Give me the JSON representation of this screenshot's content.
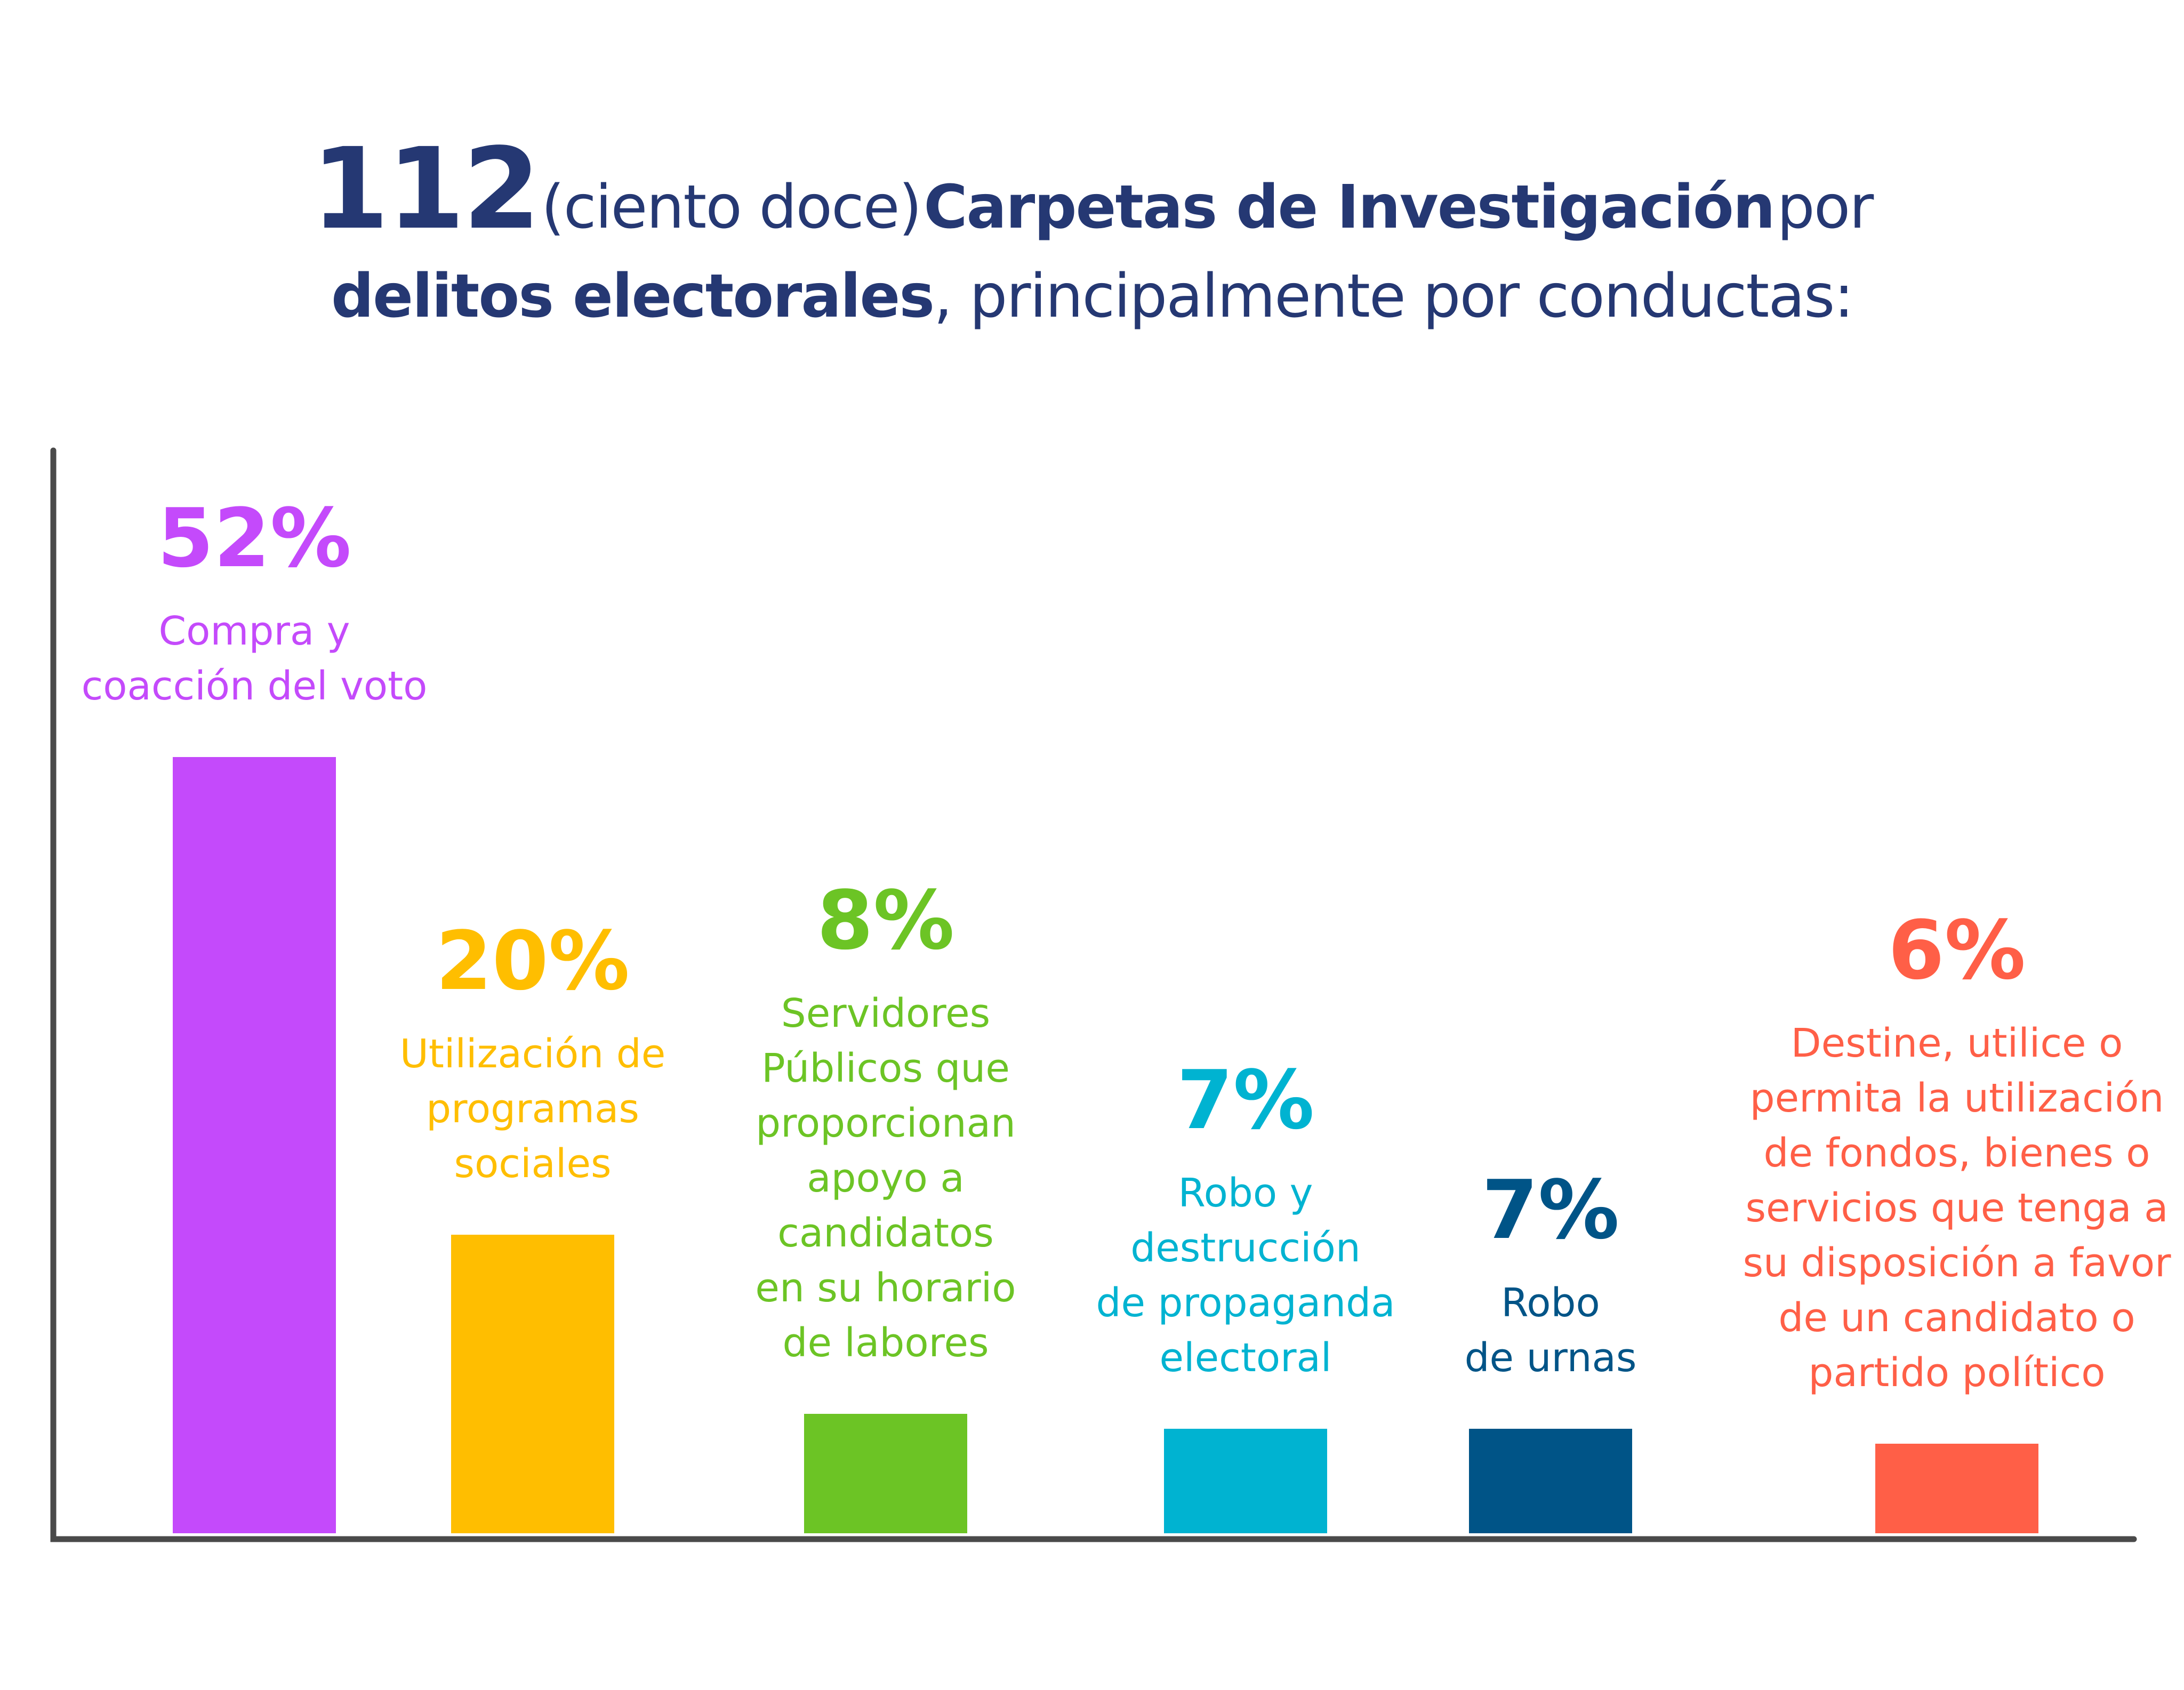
{
  "title": {
    "number": "112",
    "paren": "(ciento doce)",
    "bold_part": "Carpetas de Investigación",
    "por": "por",
    "line2_bold": "delitos electorales",
    "line2_rest": ", principalmente por conductas:"
  },
  "colors": {
    "title": "#253873",
    "axis": "#4a4a4a",
    "purple": "#C44AFB",
    "yellow": "#FFBE00",
    "green": "#6CC425",
    "cyan": "#00B3D1",
    "navy": "#005487",
    "red": "#FF5F47"
  },
  "chart_data": {
    "type": "bar",
    "title": "112 (ciento doce) Carpetas de Investigación por delitos electorales, principalmente por conductas:",
    "xlabel": "",
    "ylabel": "",
    "grid": false,
    "legend": "none",
    "categories": [
      "Compra y coacción del voto",
      "Utilización de programas sociales",
      "Servidores Públicos que proporcionan apoyo a candidatos en su horario de labores",
      "Robo y destrucción de propaganda electoral",
      "Robo de urnas",
      "Destine, utilice o permita la utilización de fondos, bienes o servicios que tenga a su disposición a favor de un candidato o partido político"
    ],
    "values": [
      52,
      20,
      8,
      7,
      7,
      6
    ],
    "value_labels": [
      "52%",
      "20%",
      "8%",
      "7%",
      "7%",
      "6%"
    ],
    "category_label_lines": [
      [
        "Compra y",
        "coacción del voto"
      ],
      [
        "Utilización de",
        "programas",
        "sociales"
      ],
      [
        "Servidores",
        "Públicos que",
        "proporcionan",
        "apoyo a",
        "candidatos",
        "en su horario",
        "de labores"
      ],
      [
        "Robo y",
        "destrucción",
        "de propaganda",
        "electoral"
      ],
      [
        "Robo",
        "de urnas"
      ],
      [
        "Destine, utilice o",
        "permita la utilización",
        "de fondos, bienes o",
        "servicios que tenga a",
        "su disposición a favor",
        "de un candidato o",
        "partido político"
      ]
    ],
    "bar_colors": [
      "#C44AFB",
      "#FFBE00",
      "#6CC425",
      "#00B3D1",
      "#005487",
      "#FF5F47"
    ]
  }
}
